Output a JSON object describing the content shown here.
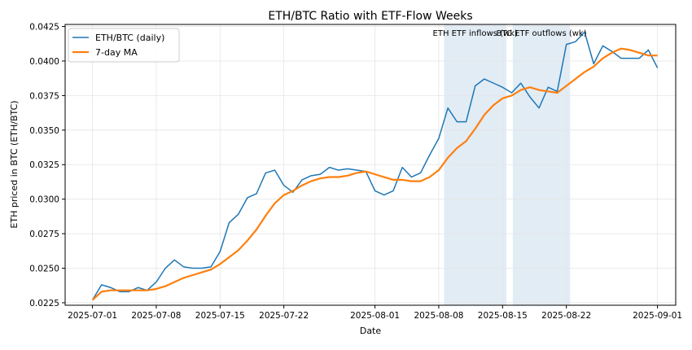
{
  "chart_data": {
    "type": "line",
    "title": "ETH/BTC Ratio with ETF-Flow Weeks",
    "xlabel": "Date",
    "ylabel": "ETH priced in BTC (ETH/BTC)",
    "x_start": "2025-07-01",
    "x_end": "2025-09-01",
    "xlim": [
      "2025-06-28",
      "2025-09-03"
    ],
    "ylim": [
      0.02232,
      0.04265
    ],
    "grid": true,
    "legend_position": "top-left",
    "x_ticks": [
      "2025-07-01",
      "2025-07-08",
      "2025-07-15",
      "2025-07-22",
      "2025-08-01",
      "2025-08-08",
      "2025-08-15",
      "2025-08-22",
      "2025-09-01"
    ],
    "y_ticks": [
      "0.0225",
      "0.0250",
      "0.0275",
      "0.0300",
      "0.0325",
      "0.0350",
      "0.0375",
      "0.0400",
      "0.0425"
    ],
    "series": [
      {
        "name": "ETH/BTC (daily)",
        "color": "#1f77b4",
        "values": [
          0.0227,
          0.0238,
          0.0236,
          0.0233,
          0.0233,
          0.0236,
          0.0234,
          0.024,
          0.025,
          0.0256,
          0.0251,
          0.025,
          0.025,
          0.0251,
          0.0262,
          0.0283,
          0.0289,
          0.0301,
          0.0304,
          0.0319,
          0.0321,
          0.031,
          0.0305,
          0.0314,
          0.0317,
          0.0318,
          0.0323,
          0.0321,
          0.0322,
          0.0321,
          0.032,
          0.0306,
          0.0303,
          0.0306,
          0.0323,
          0.0316,
          0.0319,
          0.0332,
          0.0344,
          0.0366,
          0.0356,
          0.0356,
          0.0382,
          0.0387,
          0.0384,
          0.0381,
          0.0377,
          0.0384,
          0.0374,
          0.0366,
          0.0381,
          0.0378,
          0.0412,
          0.0414,
          0.0421,
          0.0398,
          0.0411,
          0.0407,
          0.0402,
          0.0402,
          0.0402,
          0.0408,
          0.0395
        ]
      },
      {
        "name": "7-day MA",
        "color": "#ff7f0e",
        "values": [
          0.0227,
          0.0233,
          0.0234,
          0.0234,
          0.0234,
          0.0234,
          0.0234,
          0.0235,
          0.0237,
          0.024,
          0.0243,
          0.0245,
          0.0247,
          0.0249,
          0.0253,
          0.0258,
          0.0263,
          0.027,
          0.0278,
          0.0288,
          0.0297,
          0.0303,
          0.0306,
          0.031,
          0.0313,
          0.0315,
          0.0316,
          0.0316,
          0.0317,
          0.0319,
          0.032,
          0.0318,
          0.0316,
          0.0314,
          0.0314,
          0.0313,
          0.0313,
          0.0316,
          0.0321,
          0.033,
          0.0337,
          0.0342,
          0.0351,
          0.0361,
          0.0368,
          0.0373,
          0.0375,
          0.0379,
          0.0381,
          0.0379,
          0.0378,
          0.0377,
          0.0382,
          0.0387,
          0.0392,
          0.0396,
          0.0402,
          0.0406,
          0.0409,
          0.0408,
          0.0406,
          0.0404,
          0.0404
        ]
      }
    ],
    "shaded_spans": [
      {
        "label": "ETH ETF inflows (wk)",
        "start": "2025-08-08T14:00",
        "end": "2025-08-15T10:00",
        "color": "#cfe0ef"
      },
      {
        "label": "BTC ETF outflows (wk)",
        "start": "2025-08-16T03:00",
        "end": "2025-08-22T10:00",
        "color": "#cfe0ef"
      }
    ]
  }
}
